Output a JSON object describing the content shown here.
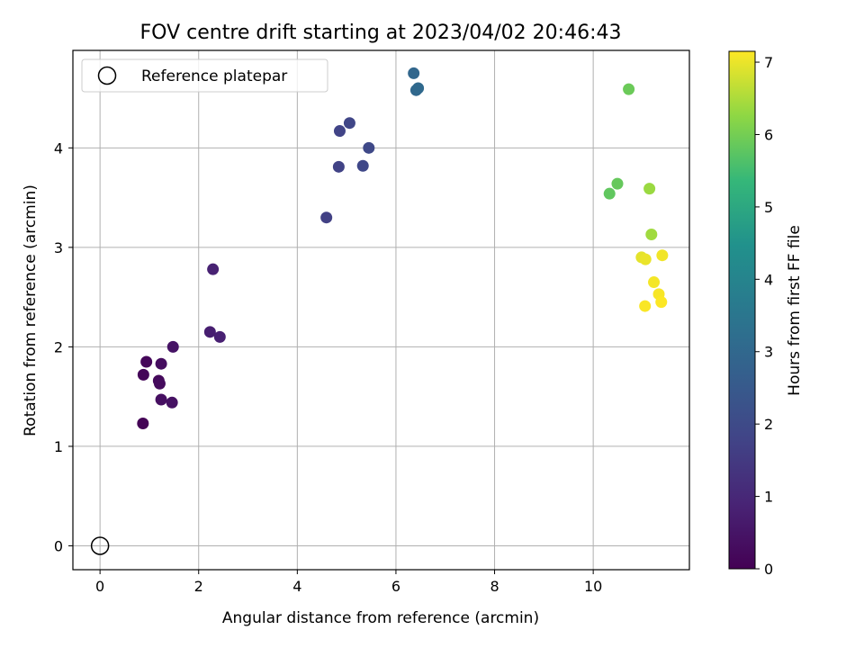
{
  "chart_data": {
    "type": "scatter",
    "title": "FOV centre drift starting at 2023/04/02 20:46:43",
    "xlabel": "Angular distance from reference (arcmin)",
    "ylabel": "Rotation from reference (arcmin)",
    "xlim": [
      -0.55,
      11.95
    ],
    "ylim": [
      -0.24,
      4.98
    ],
    "xticks": [
      0,
      2,
      4,
      6,
      8,
      10
    ],
    "yticks": [
      0,
      1,
      2,
      3,
      4
    ],
    "grid": true,
    "legend": {
      "placement": "top-left",
      "entries": [
        "Reference platepar"
      ]
    },
    "reference_point": {
      "x": 0,
      "y": 0,
      "label": "Reference platepar",
      "marker": "open-circle"
    },
    "colorbar": {
      "label": "Hours from first FF file",
      "colormap": "viridis",
      "range": [
        0,
        7.15
      ],
      "ticks": [
        0,
        1,
        2,
        3,
        4,
        5,
        6,
        7
      ]
    },
    "points": [
      {
        "x": 0.87,
        "y": 1.23,
        "c": 0.05
      },
      {
        "x": 0.88,
        "y": 1.72,
        "c": 0.1
      },
      {
        "x": 0.94,
        "y": 1.85,
        "c": 0.15
      },
      {
        "x": 1.19,
        "y": 1.66,
        "c": 0.2
      },
      {
        "x": 1.21,
        "y": 1.63,
        "c": 0.25
      },
      {
        "x": 1.24,
        "y": 1.83,
        "c": 0.3
      },
      {
        "x": 1.24,
        "y": 1.47,
        "c": 0.35
      },
      {
        "x": 1.46,
        "y": 1.44,
        "c": 0.4
      },
      {
        "x": 1.48,
        "y": 2.0,
        "c": 0.45
      },
      {
        "x": 2.23,
        "y": 2.15,
        "c": 0.75
      },
      {
        "x": 2.43,
        "y": 2.1,
        "c": 0.8
      },
      {
        "x": 2.29,
        "y": 2.78,
        "c": 0.85
      },
      {
        "x": 4.59,
        "y": 3.3,
        "c": 1.7
      },
      {
        "x": 4.84,
        "y": 3.81,
        "c": 1.75
      },
      {
        "x": 4.86,
        "y": 4.17,
        "c": 1.8
      },
      {
        "x": 5.06,
        "y": 4.25,
        "c": 1.85
      },
      {
        "x": 5.33,
        "y": 3.82,
        "c": 1.9
      },
      {
        "x": 5.45,
        "y": 4.0,
        "c": 1.95
      },
      {
        "x": 6.36,
        "y": 4.75,
        "c": 2.95
      },
      {
        "x": 6.41,
        "y": 4.58,
        "c": 3.0
      },
      {
        "x": 6.45,
        "y": 4.6,
        "c": 3.05
      },
      {
        "x": 10.33,
        "y": 3.54,
        "c": 5.8
      },
      {
        "x": 10.49,
        "y": 3.64,
        "c": 5.85
      },
      {
        "x": 10.72,
        "y": 4.59,
        "c": 5.9
      },
      {
        "x": 11.14,
        "y": 3.59,
        "c": 6.35
      },
      {
        "x": 11.18,
        "y": 3.13,
        "c": 6.4
      },
      {
        "x": 10.98,
        "y": 2.9,
        "c": 6.95
      },
      {
        "x": 11.06,
        "y": 2.88,
        "c": 7.0
      },
      {
        "x": 11.4,
        "y": 2.92,
        "c": 7.05
      },
      {
        "x": 11.23,
        "y": 2.65,
        "c": 7.08
      },
      {
        "x": 11.33,
        "y": 2.53,
        "c": 7.1
      },
      {
        "x": 11.05,
        "y": 2.41,
        "c": 7.12
      },
      {
        "x": 11.38,
        "y": 2.45,
        "c": 7.14
      }
    ]
  }
}
